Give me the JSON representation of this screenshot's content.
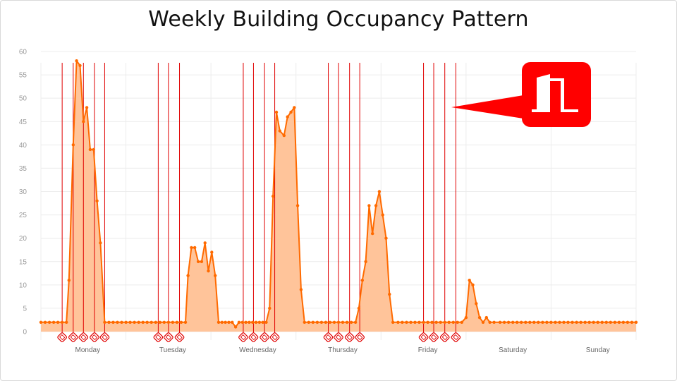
{
  "chart_data": {
    "type": "area",
    "title": "Weekly Building Occupancy Pattern",
    "xlabel": "",
    "ylabel": "",
    "ylim": [
      0,
      60
    ],
    "yticks": [
      0,
      5,
      10,
      15,
      20,
      25,
      30,
      35,
      40,
      45,
      50,
      55,
      60
    ],
    "xlim": [
      0,
      7
    ],
    "categories": [
      "Monday",
      "Tuesday",
      "Wednesday",
      "Thursday",
      "Friday",
      "Saturday",
      "Sunday"
    ],
    "grid": true,
    "legend": "none",
    "series": [
      {
        "points": [
          [
            0.0,
            2
          ],
          [
            0.05,
            2
          ],
          [
            0.1,
            2
          ],
          [
            0.15,
            2
          ],
          [
            0.2,
            2
          ],
          [
            0.25,
            2
          ],
          [
            0.3,
            2
          ],
          [
            0.33,
            11
          ],
          [
            0.38,
            40
          ],
          [
            0.42,
            58
          ],
          [
            0.46,
            57
          ],
          [
            0.5,
            45
          ],
          [
            0.54,
            48
          ],
          [
            0.58,
            39
          ],
          [
            0.62,
            39
          ],
          [
            0.66,
            28
          ],
          [
            0.7,
            19
          ],
          [
            0.75,
            2
          ],
          [
            0.8,
            2
          ],
          [
            0.85,
            2
          ],
          [
            0.9,
            2
          ],
          [
            0.95,
            2
          ],
          [
            1.0,
            2
          ],
          [
            1.05,
            2
          ],
          [
            1.1,
            2
          ],
          [
            1.15,
            2
          ],
          [
            1.2,
            2
          ],
          [
            1.25,
            2
          ],
          [
            1.3,
            2
          ],
          [
            1.35,
            2
          ],
          [
            1.4,
            2
          ],
          [
            1.45,
            2
          ],
          [
            1.5,
            2
          ],
          [
            1.55,
            2
          ],
          [
            1.6,
            2
          ],
          [
            1.65,
            2
          ],
          [
            1.7,
            2
          ],
          [
            1.73,
            12
          ],
          [
            1.77,
            18
          ],
          [
            1.81,
            18
          ],
          [
            1.85,
            15
          ],
          [
            1.89,
            15
          ],
          [
            1.93,
            19
          ],
          [
            1.97,
            13
          ],
          [
            2.01,
            17
          ],
          [
            2.05,
            12
          ],
          [
            2.09,
            2
          ],
          [
            2.13,
            2
          ],
          [
            2.17,
            2
          ],
          [
            2.21,
            2
          ],
          [
            2.25,
            2
          ],
          [
            2.29,
            1
          ],
          [
            2.33,
            2
          ],
          [
            2.37,
            2
          ],
          [
            2.41,
            2
          ],
          [
            2.45,
            2
          ],
          [
            2.49,
            2
          ],
          [
            2.53,
            2
          ],
          [
            2.57,
            2
          ],
          [
            2.61,
            2
          ],
          [
            2.65,
            2
          ],
          [
            2.69,
            5
          ],
          [
            2.73,
            29
          ],
          [
            2.77,
            47
          ],
          [
            2.81,
            43
          ],
          [
            2.86,
            42
          ],
          [
            2.9,
            46
          ],
          [
            2.94,
            47
          ],
          [
            2.98,
            48
          ],
          [
            3.02,
            27
          ],
          [
            3.06,
            9
          ],
          [
            3.1,
            2
          ],
          [
            3.15,
            2
          ],
          [
            3.2,
            2
          ],
          [
            3.25,
            2
          ],
          [
            3.3,
            2
          ],
          [
            3.35,
            2
          ],
          [
            3.4,
            2
          ],
          [
            3.45,
            2
          ],
          [
            3.5,
            2
          ],
          [
            3.55,
            2
          ],
          [
            3.6,
            2
          ],
          [
            3.65,
            2
          ],
          [
            3.7,
            2
          ],
          [
            3.74,
            5
          ],
          [
            3.78,
            11
          ],
          [
            3.82,
            15
          ],
          [
            3.86,
            27
          ],
          [
            3.9,
            21
          ],
          [
            3.94,
            27
          ],
          [
            3.98,
            30
          ],
          [
            4.02,
            25
          ],
          [
            4.06,
            20
          ],
          [
            4.1,
            8
          ],
          [
            4.14,
            2
          ],
          [
            4.2,
            2
          ],
          [
            4.25,
            2
          ],
          [
            4.3,
            2
          ],
          [
            4.35,
            2
          ],
          [
            4.4,
            2
          ],
          [
            4.45,
            2
          ],
          [
            4.5,
            2
          ],
          [
            4.55,
            2
          ],
          [
            4.6,
            2
          ],
          [
            4.65,
            2
          ],
          [
            4.7,
            2
          ],
          [
            4.75,
            2
          ],
          [
            4.8,
            2
          ],
          [
            4.85,
            2
          ],
          [
            4.9,
            2
          ],
          [
            4.95,
            2
          ],
          [
            5.0,
            3
          ],
          [
            5.04,
            11
          ],
          [
            5.08,
            10
          ],
          [
            5.12,
            6
          ],
          [
            5.16,
            3
          ],
          [
            5.2,
            2
          ],
          [
            5.24,
            3
          ],
          [
            5.28,
            2
          ],
          [
            5.33,
            2
          ],
          [
            5.4,
            2
          ],
          [
            5.45,
            2
          ],
          [
            5.5,
            2
          ],
          [
            5.55,
            2
          ],
          [
            5.6,
            2
          ],
          [
            5.65,
            2
          ],
          [
            5.7,
            2
          ],
          [
            5.75,
            2
          ],
          [
            5.8,
            2
          ],
          [
            5.85,
            2
          ],
          [
            5.9,
            2
          ],
          [
            5.95,
            2
          ],
          [
            6.0,
            2
          ],
          [
            6.05,
            2
          ],
          [
            6.1,
            2
          ],
          [
            6.15,
            2
          ],
          [
            6.2,
            2
          ],
          [
            6.25,
            2
          ],
          [
            6.3,
            2
          ],
          [
            6.35,
            2
          ],
          [
            6.4,
            2
          ],
          [
            6.45,
            2
          ],
          [
            6.5,
            2
          ],
          [
            6.55,
            2
          ],
          [
            6.6,
            2
          ],
          [
            6.65,
            2
          ],
          [
            6.7,
            2
          ],
          [
            6.75,
            2
          ],
          [
            6.8,
            2
          ],
          [
            6.85,
            2
          ],
          [
            6.9,
            2
          ],
          [
            6.95,
            2
          ],
          [
            7.0,
            2
          ]
        ],
        "color": "#ff6a00",
        "fill": "#ffc49a"
      }
    ],
    "event_lines": [
      0.25,
      0.38,
      0.5,
      0.63,
      0.75,
      1.38,
      1.5,
      1.63,
      2.38,
      2.5,
      2.63,
      2.75,
      3.38,
      3.5,
      3.63,
      3.75,
      4.5,
      4.62,
      4.75,
      4.88
    ],
    "event_line_color": "#e00000",
    "event_marker_icon": "door-tag-icon",
    "callout_icon": "door-icon",
    "callout_color": "#ff0000"
  }
}
